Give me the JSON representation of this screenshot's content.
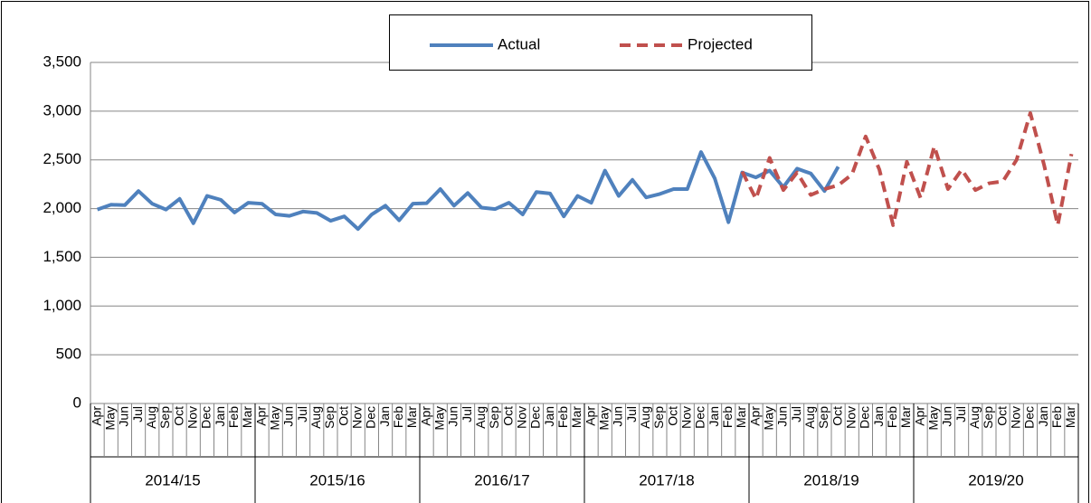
{
  "chart_data": {
    "type": "line",
    "categories": [
      "Apr",
      "May",
      "Jun",
      "Jul",
      "Aug",
      "Sep",
      "Oct",
      "Nov",
      "Dec",
      "Jan",
      "Feb",
      "Mar",
      "Apr",
      "May",
      "Jun",
      "Jul",
      "Aug",
      "Sep",
      "Oct",
      "Nov",
      "Dec",
      "Jan",
      "Feb",
      "Mar",
      "Apr",
      "May",
      "Jun",
      "Jul",
      "Aug",
      "Sep",
      "Oct",
      "Nov",
      "Dec",
      "Jan",
      "Feb",
      "Mar",
      "Apr",
      "May",
      "Jun",
      "Jul",
      "Aug",
      "Sep",
      "Oct",
      "Nov",
      "Dec",
      "Jan",
      "Feb",
      "Mar",
      "Apr",
      "May",
      "Jun",
      "Jul",
      "Aug",
      "Sep",
      "Oct",
      "Nov",
      "Dec",
      "Jan",
      "Feb",
      "Mar",
      "Apr",
      "May",
      "Jun",
      "Jul",
      "Aug",
      "Sep",
      "Oct",
      "Nov",
      "Dec",
      "Jan",
      "Feb",
      "Mar"
    ],
    "groups": [
      "2014/15",
      "2015/16",
      "2016/17",
      "2017/18",
      "2018/19",
      "2019/20"
    ],
    "series": [
      {
        "name": "Actual",
        "color": "#4f81bd",
        "dash": false,
        "values": [
          1990,
          2040,
          2035,
          2180,
          2050,
          1990,
          2100,
          1850,
          2130,
          2090,
          1960,
          2060,
          2050,
          1940,
          1925,
          1970,
          1955,
          1875,
          1920,
          1790,
          1940,
          2030,
          1880,
          2050,
          2055,
          2200,
          2030,
          2160,
          2010,
          1995,
          2060,
          1940,
          2170,
          2155,
          1920,
          2130,
          2060,
          2390,
          2130,
          2295,
          2115,
          2150,
          2200,
          2200,
          2580,
          2310,
          1860,
          2370,
          2320,
          2390,
          2220,
          2410,
          2360,
          2180,
          2430,
          null,
          null,
          null,
          null,
          null,
          null,
          null,
          null,
          null,
          null,
          null,
          null,
          null,
          null,
          null,
          null,
          null
        ]
      },
      {
        "name": "Projected",
        "color": "#c0504d",
        "dash": true,
        "values": [
          null,
          null,
          null,
          null,
          null,
          null,
          null,
          null,
          null,
          null,
          null,
          null,
          null,
          null,
          null,
          null,
          null,
          null,
          null,
          null,
          null,
          null,
          null,
          null,
          null,
          null,
          null,
          null,
          null,
          null,
          null,
          null,
          null,
          null,
          null,
          null,
          null,
          null,
          null,
          null,
          null,
          null,
          null,
          null,
          null,
          null,
          null,
          2380,
          2100,
          2520,
          2190,
          2370,
          2140,
          2200,
          2240,
          2350,
          2740,
          2400,
          1830,
          2480,
          2110,
          2640,
          2200,
          2400,
          2190,
          2260,
          2280,
          2500,
          2980,
          2450,
          1830,
          2560
        ]
      }
    ],
    "ylim": [
      0,
      3500
    ],
    "yticks": [
      0,
      500,
      {
        "value": 1000,
        "label": "1,000"
      },
      {
        "value": 1500,
        "label": "1,500"
      },
      {
        "value": 2000,
        "label": "2,000"
      },
      {
        "value": 2500,
        "label": "2,500"
      },
      {
        "value": 3000,
        "label": "3,000"
      },
      {
        "value": 3500,
        "label": "3,500"
      }
    ],
    "grid": true
  }
}
